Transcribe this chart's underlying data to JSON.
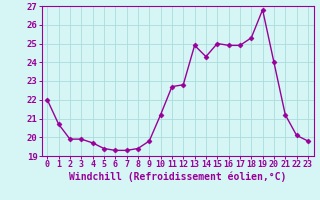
{
  "x": [
    0,
    1,
    2,
    3,
    4,
    5,
    6,
    7,
    8,
    9,
    10,
    11,
    12,
    13,
    14,
    15,
    16,
    17,
    18,
    19,
    20,
    21,
    22,
    23
  ],
  "y": [
    22.0,
    20.7,
    19.9,
    19.9,
    19.7,
    19.4,
    19.3,
    19.3,
    19.4,
    19.8,
    21.2,
    22.7,
    22.8,
    24.9,
    24.3,
    25.0,
    24.9,
    24.9,
    25.3,
    26.8,
    24.0,
    21.2,
    20.1,
    19.8
  ],
  "line_color": "#990099",
  "marker": "D",
  "marker_size": 2.5,
  "linewidth": 1.0,
  "bg_color": "#d6f5f5",
  "grid_color": "#aadddd",
  "xlabel": "Windchill (Refroidissement éolien,°C)",
  "xlabel_fontsize": 7,
  "tick_fontsize": 6,
  "ytick_fontsize": 6.5,
  "ylim": [
    19,
    27
  ],
  "xlim": [
    -0.5,
    23.5
  ],
  "yticks": [
    19,
    20,
    21,
    22,
    23,
    24,
    25,
    26,
    27
  ],
  "xticks": [
    0,
    1,
    2,
    3,
    4,
    5,
    6,
    7,
    8,
    9,
    10,
    11,
    12,
    13,
    14,
    15,
    16,
    17,
    18,
    19,
    20,
    21,
    22,
    23
  ]
}
